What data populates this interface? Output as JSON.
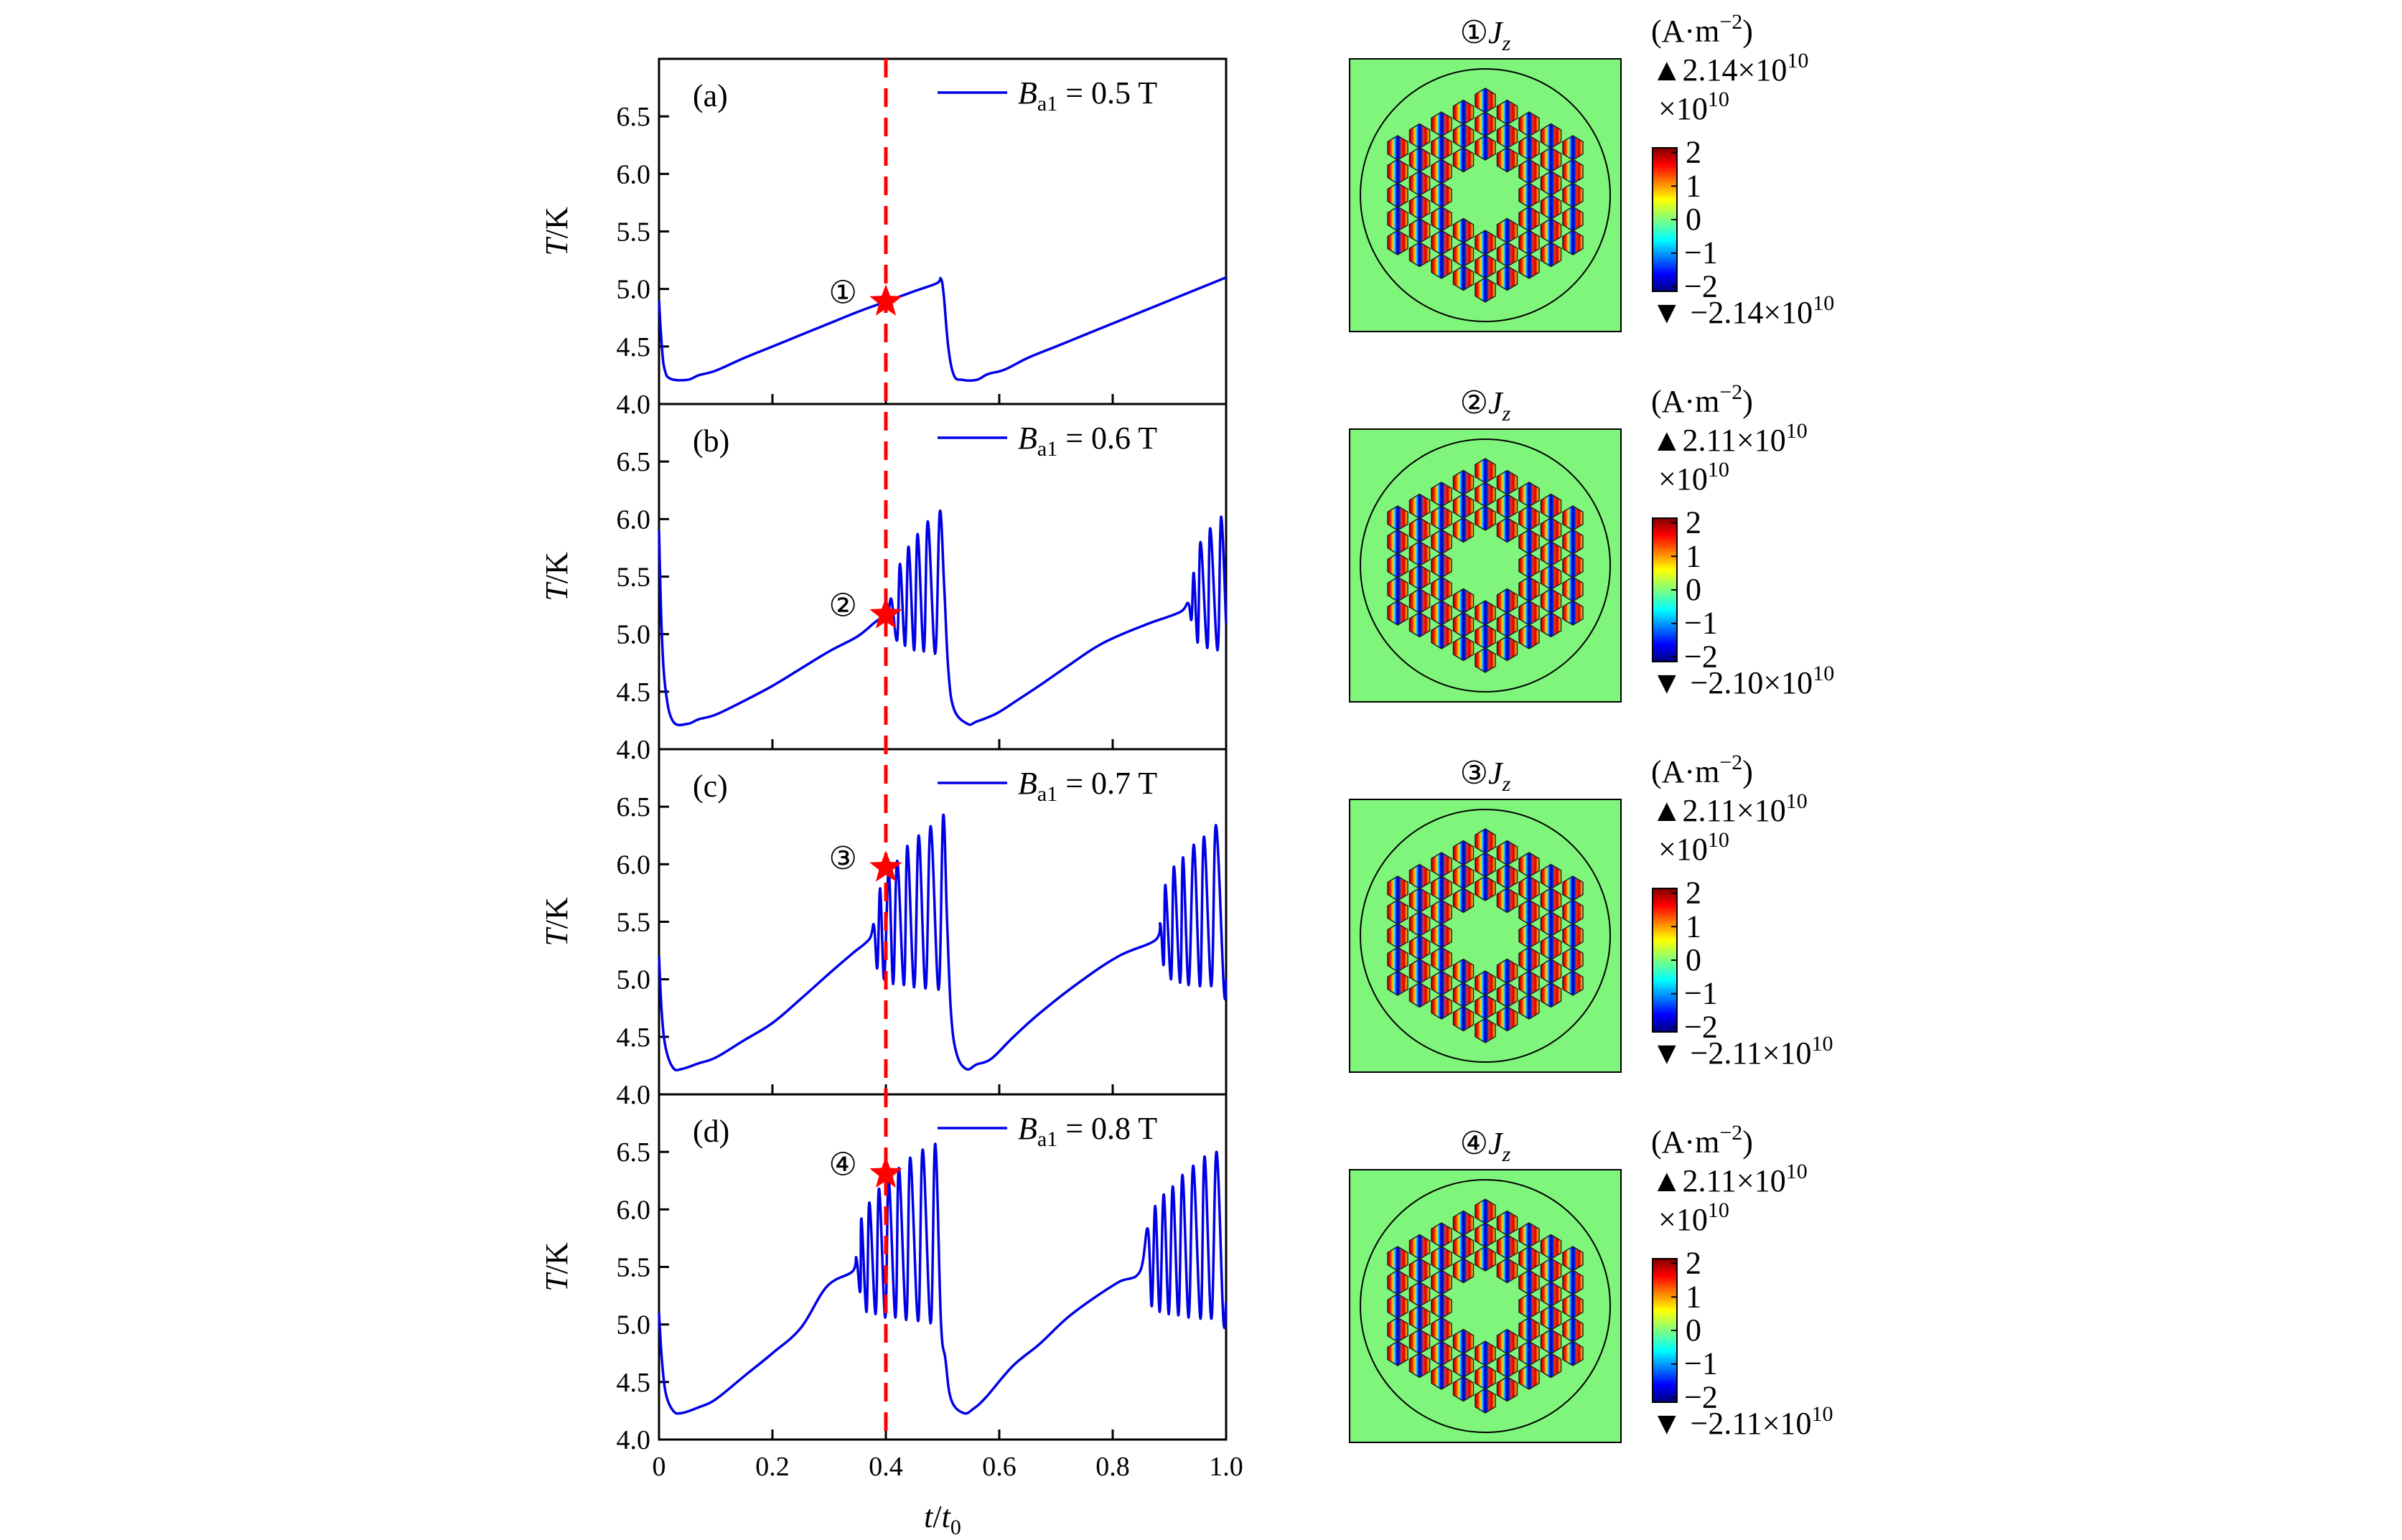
{
  "colors": {
    "curve": "#0000e6",
    "marker": "#ff0000",
    "axis": "#000000",
    "background_field": "#80f57c"
  },
  "chart_data": {
    "type": "line",
    "xlabel": {
      "main": "t",
      "sep": "/",
      "denom": "t",
      "denom_sub": "0"
    },
    "ylabel": {
      "main": "T",
      "unit": "/K"
    },
    "xlim": [
      0,
      1.0
    ],
    "ylim": [
      4.0,
      7.0
    ],
    "xticks": [
      "0",
      "0.2",
      "0.4",
      "0.6",
      "0.8",
      "1.0"
    ],
    "xtick_values": [
      0,
      0.2,
      0.4,
      0.6,
      0.8,
      1.0
    ],
    "yticks": [
      "4.0",
      "4.5",
      "5.0",
      "5.5",
      "6.0",
      "6.5"
    ],
    "ytick_values": [
      4.0,
      4.5,
      5.0,
      5.5,
      6.0,
      6.5
    ],
    "grid": false,
    "reference_line": {
      "x": 0.4,
      "style": "dashed",
      "color": "#ff0000"
    },
    "legend_placement": "top-right",
    "panels": [
      {
        "letter": "(a)",
        "legend": {
          "sym": "B",
          "sub": "a1",
          "value": " = 0.5 T"
        },
        "marker": {
          "label": "①",
          "x": 0.4,
          "y": 4.89
        },
        "points": [
          [
            0,
            4.9
          ],
          [
            0.005,
            4.5
          ],
          [
            0.01,
            4.3
          ],
          [
            0.02,
            4.22
          ],
          [
            0.05,
            4.21
          ],
          [
            0.07,
            4.25
          ],
          [
            0.1,
            4.29
          ],
          [
            0.15,
            4.4
          ],
          [
            0.2,
            4.5
          ],
          [
            0.25,
            4.6
          ],
          [
            0.3,
            4.7
          ],
          [
            0.35,
            4.8
          ],
          [
            0.4,
            4.89
          ],
          [
            0.45,
            4.98
          ],
          [
            0.49,
            5.05
          ],
          [
            0.497,
            5.09
          ],
          [
            0.502,
            4.95
          ],
          [
            0.51,
            4.5
          ],
          [
            0.52,
            4.25
          ],
          [
            0.535,
            4.21
          ],
          [
            0.56,
            4.21
          ],
          [
            0.58,
            4.26
          ],
          [
            0.61,
            4.3
          ],
          [
            0.65,
            4.4
          ],
          [
            0.7,
            4.5
          ],
          [
            0.75,
            4.6
          ],
          [
            0.8,
            4.7
          ],
          [
            0.85,
            4.8
          ],
          [
            0.9,
            4.9
          ],
          [
            0.95,
            5.0
          ],
          [
            1.0,
            5.1
          ]
        ]
      },
      {
        "letter": "(b)",
        "legend": {
          "sym": "B",
          "sub": "a1",
          "value": " = 0.6 T"
        },
        "marker": {
          "label": "②",
          "x": 0.4,
          "y": 5.17
        },
        "points": [
          [
            0,
            5.9
          ],
          [
            0.005,
            5.0
          ],
          [
            0.012,
            4.5
          ],
          [
            0.025,
            4.24
          ],
          [
            0.05,
            4.22
          ],
          [
            0.07,
            4.26
          ],
          [
            0.1,
            4.3
          ],
          [
            0.15,
            4.42
          ],
          [
            0.2,
            4.55
          ],
          [
            0.25,
            4.7
          ],
          [
            0.3,
            4.85
          ],
          [
            0.35,
            4.98
          ],
          [
            0.38,
            5.1
          ],
          [
            0.4,
            5.17
          ],
          [
            0.405,
            5.2
          ],
          [
            0.41,
            5.3
          ],
          [
            0.42,
            4.95
          ],
          [
            0.425,
            5.61
          ],
          [
            0.434,
            4.9
          ],
          [
            0.44,
            5.76
          ],
          [
            0.45,
            4.86
          ],
          [
            0.456,
            5.87
          ],
          [
            0.467,
            4.85
          ],
          [
            0.474,
            5.98
          ],
          [
            0.487,
            4.83
          ],
          [
            0.495,
            6.06
          ],
          [
            0.503,
            5.4
          ],
          [
            0.51,
            4.7
          ],
          [
            0.52,
            4.35
          ],
          [
            0.544,
            4.22
          ],
          [
            0.56,
            4.24
          ],
          [
            0.595,
            4.31
          ],
          [
            0.63,
            4.42
          ],
          [
            0.67,
            4.55
          ],
          [
            0.72,
            4.72
          ],
          [
            0.782,
            4.92
          ],
          [
            0.857,
            5.08
          ],
          [
            0.918,
            5.19
          ],
          [
            0.933,
            5.27
          ],
          [
            0.939,
            5.13
          ],
          [
            0.943,
            5.53
          ],
          [
            0.95,
            4.93
          ],
          [
            0.955,
            5.8
          ],
          [
            0.967,
            4.88
          ],
          [
            0.972,
            5.92
          ],
          [
            0.985,
            4.86
          ],
          [
            0.991,
            6.02
          ],
          [
            1.0,
            5.09
          ]
        ]
      },
      {
        "letter": "(c)",
        "legend": {
          "sym": "B",
          "sub": "a1",
          "value": " = 0.7 T"
        },
        "marker": {
          "label": "③",
          "x": 0.4,
          "y": 5.97
        },
        "points": [
          [
            0,
            5.2
          ],
          [
            0.005,
            4.7
          ],
          [
            0.012,
            4.4
          ],
          [
            0.025,
            4.23
          ],
          [
            0.04,
            4.22
          ],
          [
            0.07,
            4.27
          ],
          [
            0.1,
            4.32
          ],
          [
            0.15,
            4.47
          ],
          [
            0.2,
            4.62
          ],
          [
            0.25,
            4.83
          ],
          [
            0.3,
            5.05
          ],
          [
            0.34,
            5.22
          ],
          [
            0.371,
            5.35
          ],
          [
            0.379,
            5.47
          ],
          [
            0.385,
            5.1
          ],
          [
            0.39,
            5.79
          ],
          [
            0.397,
            5.0
          ],
          [
            0.405,
            5.94
          ],
          [
            0.413,
            4.96
          ],
          [
            0.42,
            6.03
          ],
          [
            0.432,
            4.95
          ],
          [
            0.438,
            6.16
          ],
          [
            0.45,
            4.93
          ],
          [
            0.458,
            6.25
          ],
          [
            0.47,
            4.92
          ],
          [
            0.479,
            6.33
          ],
          [
            0.493,
            4.91
          ],
          [
            0.501,
            6.42
          ],
          [
            0.508,
            5.5
          ],
          [
            0.515,
            4.7
          ],
          [
            0.525,
            4.35
          ],
          [
            0.542,
            4.22
          ],
          [
            0.56,
            4.26
          ],
          [
            0.586,
            4.31
          ],
          [
            0.623,
            4.49
          ],
          [
            0.67,
            4.7
          ],
          [
            0.74,
            4.97
          ],
          [
            0.81,
            5.2
          ],
          [
            0.875,
            5.34
          ],
          [
            0.884,
            5.48
          ],
          [
            0.89,
            5.13
          ],
          [
            0.893,
            5.82
          ],
          [
            0.903,
            5.0
          ],
          [
            0.908,
            5.98
          ],
          [
            0.919,
            4.97
          ],
          [
            0.924,
            6.06
          ],
          [
            0.934,
            4.95
          ],
          [
            0.943,
            6.17
          ],
          [
            0.954,
            4.94
          ],
          [
            0.961,
            6.24
          ],
          [
            0.974,
            4.94
          ],
          [
            0.982,
            6.34
          ],
          [
            0.996,
            4.92
          ],
          [
            1.0,
            5.0
          ]
        ]
      },
      {
        "letter": "(d)",
        "legend": {
          "sym": "B",
          "sub": "a1",
          "value": " = 0.8 T"
        },
        "marker": {
          "label": "④",
          "x": 0.4,
          "y": 6.31
        },
        "points": [
          [
            0,
            5.1
          ],
          [
            0.005,
            4.7
          ],
          [
            0.012,
            4.4
          ],
          [
            0.025,
            4.25
          ],
          [
            0.04,
            4.23
          ],
          [
            0.07,
            4.28
          ],
          [
            0.1,
            4.35
          ],
          [
            0.15,
            4.55
          ],
          [
            0.2,
            4.75
          ],
          [
            0.25,
            4.97
          ],
          [
            0.296,
            5.33
          ],
          [
            0.341,
            5.46
          ],
          [
            0.348,
            5.58
          ],
          [
            0.355,
            5.29
          ],
          [
            0.357,
            5.92
          ],
          [
            0.366,
            5.11
          ],
          [
            0.371,
            6.06
          ],
          [
            0.382,
            5.09
          ],
          [
            0.388,
            6.18
          ],
          [
            0.399,
            5.06
          ],
          [
            0.405,
            6.25
          ],
          [
            0.417,
            5.06
          ],
          [
            0.423,
            6.36
          ],
          [
            0.436,
            5.04
          ],
          [
            0.443,
            6.45
          ],
          [
            0.457,
            5.03
          ],
          [
            0.465,
            6.52
          ],
          [
            0.479,
            5.01
          ],
          [
            0.487,
            6.57
          ],
          [
            0.497,
            5.04
          ],
          [
            0.505,
            4.7
          ],
          [
            0.515,
            4.35
          ],
          [
            0.537,
            4.23
          ],
          [
            0.555,
            4.27
          ],
          [
            0.577,
            4.37
          ],
          [
            0.624,
            4.64
          ],
          [
            0.671,
            4.83
          ],
          [
            0.718,
            5.05
          ],
          [
            0.764,
            5.22
          ],
          [
            0.811,
            5.37
          ],
          [
            0.848,
            5.46
          ],
          [
            0.862,
            5.83
          ],
          [
            0.869,
            5.16
          ],
          [
            0.875,
            6.03
          ],
          [
            0.883,
            5.11
          ],
          [
            0.89,
            6.13
          ],
          [
            0.899,
            5.09
          ],
          [
            0.906,
            6.2
          ],
          [
            0.916,
            5.08
          ],
          [
            0.923,
            6.3
          ],
          [
            0.934,
            5.06
          ],
          [
            0.942,
            6.38
          ],
          [
            0.955,
            5.05
          ],
          [
            0.962,
            6.46
          ],
          [
            0.974,
            5.05
          ],
          [
            0.983,
            6.5
          ],
          [
            0.995,
            5.05
          ],
          [
            1.0,
            5.2
          ]
        ]
      }
    ]
  },
  "maps": [
    {
      "num": "①",
      "quantity": "J",
      "sub": "z",
      "unit": "(A·m",
      "unit_exp": "−2",
      "unit_close": ")",
      "max": "▲2.14×10",
      "max_exp": "10",
      "scale": "×10",
      "scale_exp": "10",
      "min": "▼ −2.14×10",
      "min_exp": "10"
    },
    {
      "num": "②",
      "quantity": "J",
      "sub": "z",
      "unit": "(A·m",
      "unit_exp": "−2",
      "unit_close": ")",
      "max": "▲2.11×10",
      "max_exp": "10",
      "scale": "×10",
      "scale_exp": "10",
      "min": "▼ −2.10×10",
      "min_exp": "10"
    },
    {
      "num": "③",
      "quantity": "J",
      "sub": "z",
      "unit": "(A·m",
      "unit_exp": "−2",
      "unit_close": ")",
      "max": "▲2.11×10",
      "max_exp": "10",
      "scale": "×10",
      "scale_exp": "10",
      "min": "▼ −2.11×10",
      "min_exp": "10"
    },
    {
      "num": "④",
      "quantity": "J",
      "sub": "z",
      "unit": "(A·m",
      "unit_exp": "−2",
      "unit_close": ")",
      "max": "▲2.11×10",
      "max_exp": "10",
      "scale": "×10",
      "scale_exp": "10",
      "min": "▼ −2.11×10",
      "min_exp": "10"
    }
  ],
  "colorbar": {
    "ticks": [
      "2",
      "1",
      "0",
      "−1",
      "−2"
    ],
    "tick_values": [
      2,
      1,
      0,
      -1,
      -2
    ],
    "range": [
      -2.14,
      2.14
    ],
    "colormap": "jet"
  }
}
